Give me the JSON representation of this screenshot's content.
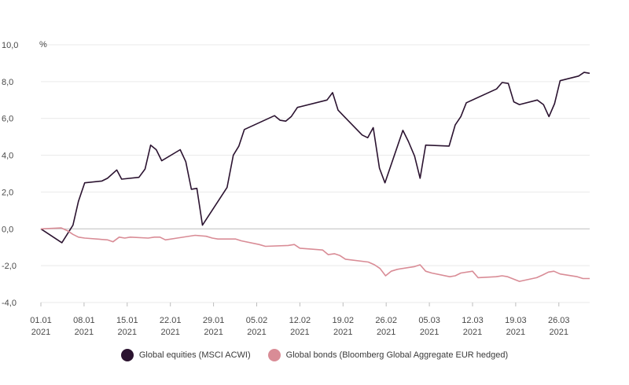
{
  "chart_data": {
    "type": "line",
    "unit_label": "%",
    "ylim": [
      -4,
      10
    ],
    "y_ticks": [
      "10,0",
      "8,0",
      "6,0",
      "4,0",
      "2,0",
      "0,0",
      "-2,0",
      "-4,0"
    ],
    "y_tick_values": [
      10,
      8,
      6,
      4,
      2,
      0,
      -2,
      -4
    ],
    "x_ticks": [
      {
        "day": 0,
        "label1": "01.01",
        "label2": "2021"
      },
      {
        "day": 7,
        "label1": "08.01",
        "label2": "2021"
      },
      {
        "day": 14,
        "label1": "15.01",
        "label2": "2021"
      },
      {
        "day": 21,
        "label1": "22.01",
        "label2": "2021"
      },
      {
        "day": 28,
        "label1": "29.01",
        "label2": "2021"
      },
      {
        "day": 35,
        "label1": "05.02",
        "label2": "2021"
      },
      {
        "day": 42,
        "label1": "12.02",
        "label2": "2021"
      },
      {
        "day": 49,
        "label1": "19.02",
        "label2": "2021"
      },
      {
        "day": 56,
        "label1": "26.02",
        "label2": "2021"
      },
      {
        "day": 63,
        "label1": "05.03",
        "label2": "2021"
      },
      {
        "day": 70,
        "label1": "12.03",
        "label2": "2021"
      },
      {
        "day": 77,
        "label1": "19.03",
        "label2": "2021"
      },
      {
        "day": 84,
        "label1": "26.03",
        "label2": "2021"
      }
    ],
    "grid": true,
    "legend_position": "bottom",
    "series": [
      {
        "name": "Global equities (MSCI ACWI)",
        "color": "#2b1330",
        "points": [
          [
            0,
            0.0
          ],
          [
            3.4,
            -0.75
          ],
          [
            5.2,
            0.2
          ],
          [
            6.1,
            1.5
          ],
          [
            7.1,
            2.5
          ],
          [
            9.9,
            2.6
          ],
          [
            10.8,
            2.75
          ],
          [
            12.3,
            3.2
          ],
          [
            13.1,
            2.7
          ],
          [
            15.9,
            2.8
          ],
          [
            16.9,
            3.25
          ],
          [
            17.8,
            4.55
          ],
          [
            18.7,
            4.3
          ],
          [
            19.6,
            3.7
          ],
          [
            22.6,
            4.3
          ],
          [
            23.5,
            3.65
          ],
          [
            24.4,
            2.15
          ],
          [
            25.3,
            2.2
          ],
          [
            26.2,
            0.2
          ],
          [
            30.2,
            2.25
          ],
          [
            31.2,
            4.0
          ],
          [
            32.1,
            4.5
          ],
          [
            33.0,
            5.4
          ],
          [
            37.9,
            6.15
          ],
          [
            38.8,
            5.9
          ],
          [
            39.7,
            5.85
          ],
          [
            40.6,
            6.1
          ],
          [
            41.6,
            6.6
          ],
          [
            46.4,
            7.0
          ],
          [
            47.3,
            7.4
          ],
          [
            48.2,
            6.45
          ],
          [
            49.2,
            6.1
          ],
          [
            52.1,
            5.1
          ],
          [
            53.0,
            4.95
          ],
          [
            53.9,
            5.5
          ],
          [
            54.9,
            3.3
          ],
          [
            55.8,
            2.5
          ],
          [
            58.7,
            5.35
          ],
          [
            59.6,
            4.75
          ],
          [
            60.6,
            3.95
          ],
          [
            61.5,
            2.75
          ],
          [
            62.4,
            4.55
          ],
          [
            66.2,
            4.5
          ],
          [
            67.2,
            5.65
          ],
          [
            68.1,
            6.1
          ],
          [
            69.0,
            6.85
          ],
          [
            73.9,
            7.6
          ],
          [
            74.8,
            7.95
          ],
          [
            75.8,
            7.9
          ],
          [
            76.7,
            6.9
          ],
          [
            77.6,
            6.75
          ],
          [
            80.5,
            7.0
          ],
          [
            81.5,
            6.75
          ],
          [
            82.4,
            6.1
          ],
          [
            83.3,
            6.8
          ],
          [
            84.2,
            8.05
          ],
          [
            87.2,
            8.3
          ],
          [
            88.1,
            8.5
          ],
          [
            89.0,
            8.45
          ]
        ]
      },
      {
        "name": "Global bonds (Bloomberg Global Aggregate EUR hedged)",
        "color": "#d98c96",
        "points": [
          [
            0,
            0.0
          ],
          [
            3.3,
            0.05
          ],
          [
            4.3,
            -0.1
          ],
          [
            5.2,
            -0.3
          ],
          [
            6.1,
            -0.45
          ],
          [
            7.1,
            -0.5
          ],
          [
            10.8,
            -0.6
          ],
          [
            11.7,
            -0.7
          ],
          [
            12.7,
            -0.45
          ],
          [
            13.6,
            -0.5
          ],
          [
            14.5,
            -0.45
          ],
          [
            17.4,
            -0.5
          ],
          [
            18.4,
            -0.45
          ],
          [
            19.3,
            -0.45
          ],
          [
            20.2,
            -0.6
          ],
          [
            22.1,
            -0.5
          ],
          [
            25.0,
            -0.35
          ],
          [
            26.8,
            -0.4
          ],
          [
            27.8,
            -0.5
          ],
          [
            28.7,
            -0.55
          ],
          [
            31.6,
            -0.55
          ],
          [
            32.5,
            -0.65
          ],
          [
            35.4,
            -0.85
          ],
          [
            36.4,
            -0.95
          ],
          [
            40.1,
            -0.9
          ],
          [
            41.1,
            -0.85
          ],
          [
            42.0,
            -1.05
          ],
          [
            43.9,
            -1.1
          ],
          [
            45.7,
            -1.15
          ],
          [
            46.6,
            -1.4
          ],
          [
            47.6,
            -1.35
          ],
          [
            48.5,
            -1.45
          ],
          [
            49.4,
            -1.65
          ],
          [
            53.1,
            -1.8
          ],
          [
            54.1,
            -1.95
          ],
          [
            55.0,
            -2.15
          ],
          [
            55.9,
            -2.55
          ],
          [
            56.8,
            -2.3
          ],
          [
            57.8,
            -2.2
          ],
          [
            60.6,
            -2.05
          ],
          [
            61.5,
            -1.95
          ],
          [
            62.4,
            -2.3
          ],
          [
            63.4,
            -2.4
          ],
          [
            66.3,
            -2.6
          ],
          [
            67.2,
            -2.55
          ],
          [
            68.1,
            -2.4
          ],
          [
            70.0,
            -2.3
          ],
          [
            70.9,
            -2.65
          ],
          [
            73.8,
            -2.6
          ],
          [
            74.8,
            -2.55
          ],
          [
            75.7,
            -2.6
          ],
          [
            77.6,
            -2.85
          ],
          [
            80.4,
            -2.65
          ],
          [
            81.4,
            -2.5
          ],
          [
            82.3,
            -2.35
          ],
          [
            83.2,
            -2.3
          ],
          [
            84.2,
            -2.45
          ],
          [
            87.0,
            -2.6
          ],
          [
            87.9,
            -2.7
          ],
          [
            89.0,
            -2.7
          ]
        ]
      }
    ]
  }
}
